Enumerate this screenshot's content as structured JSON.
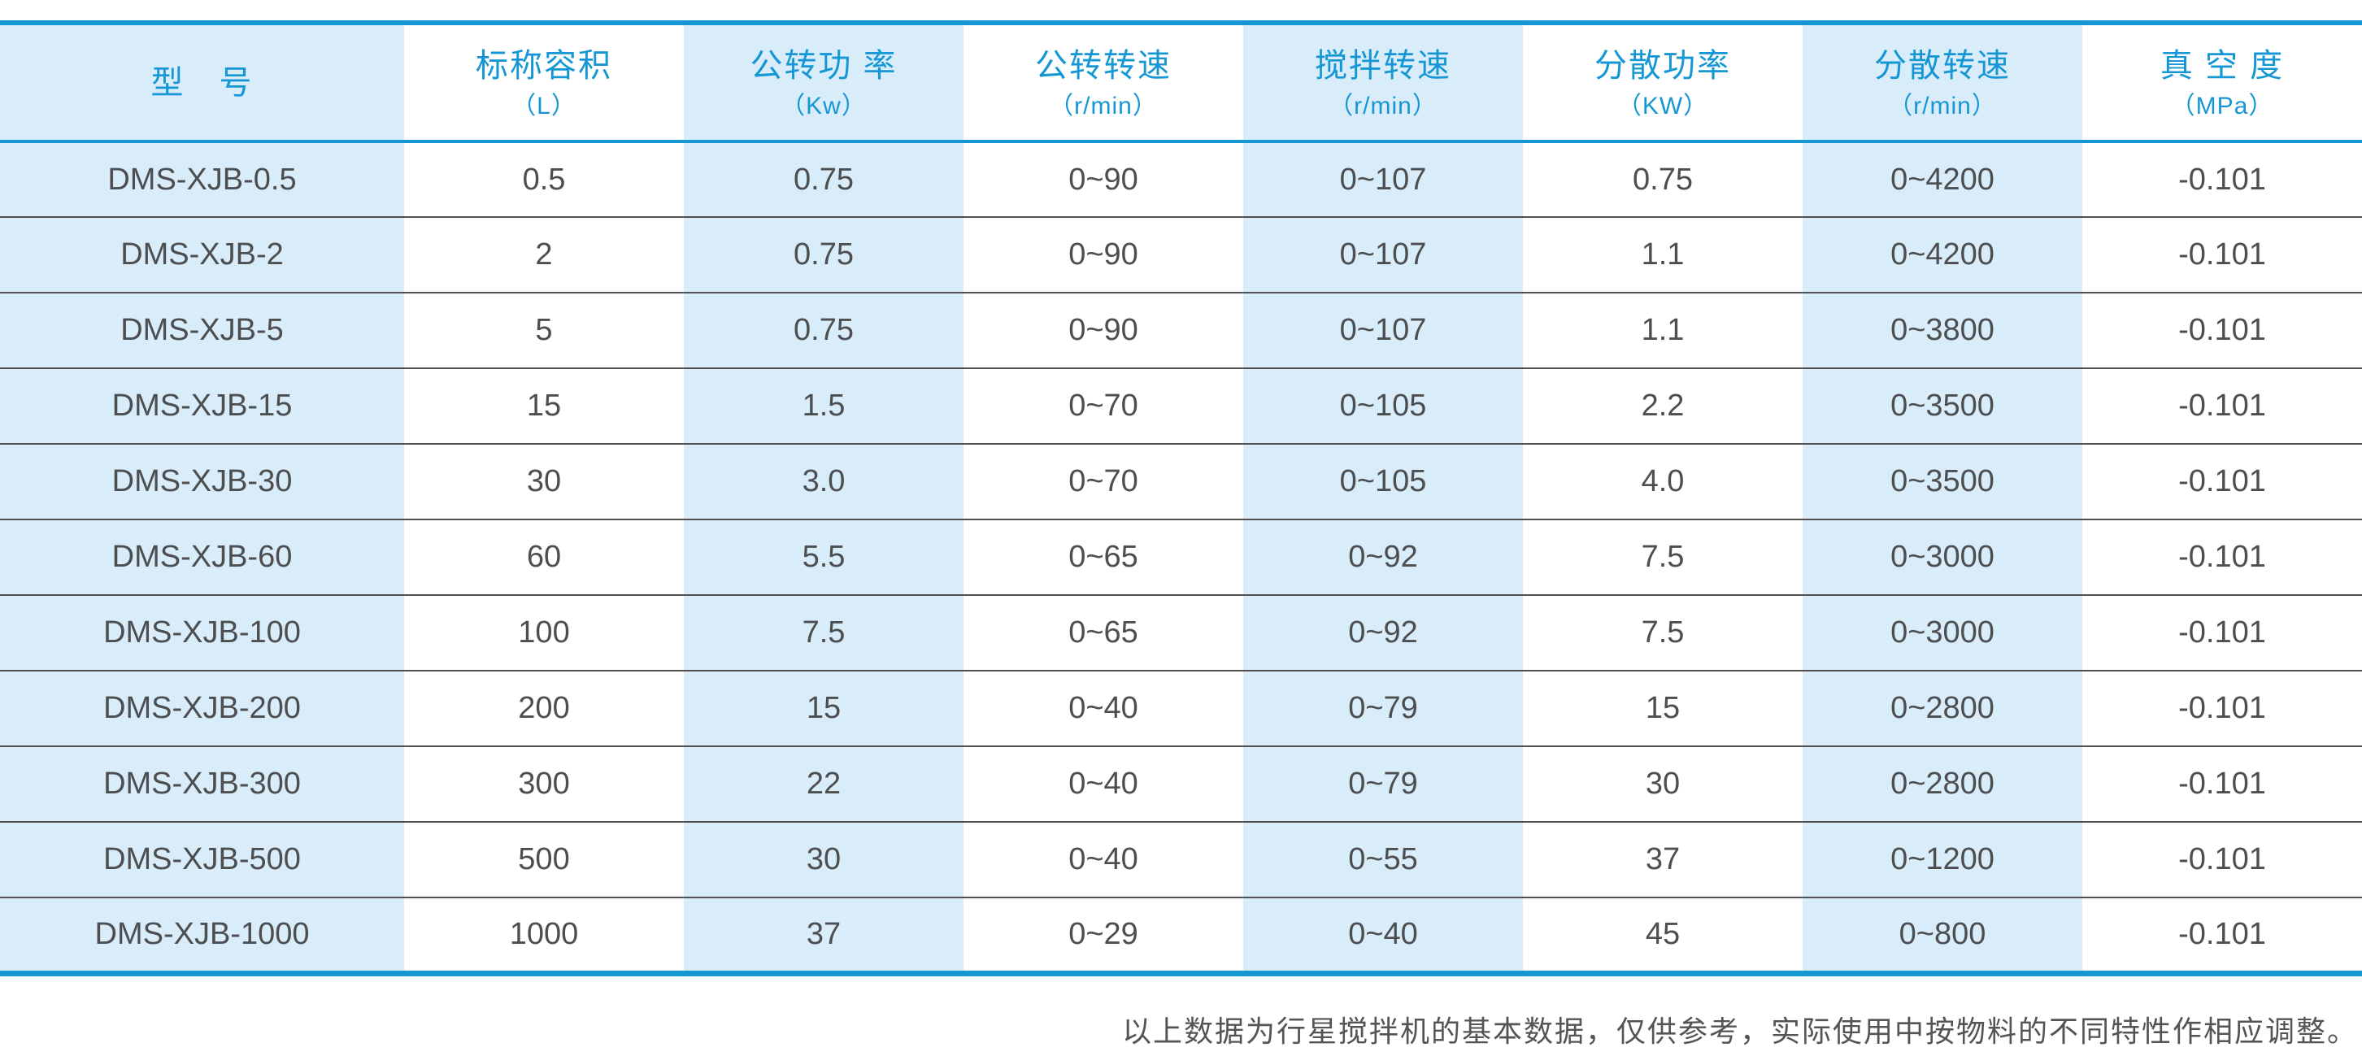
{
  "table": {
    "columns": [
      {
        "title": "型　号",
        "unit": ""
      },
      {
        "title": "标称容积",
        "unit": "（L）"
      },
      {
        "title": "公转功 率",
        "unit": "（Kw）"
      },
      {
        "title": "公转转速",
        "unit": "（r/min）"
      },
      {
        "title": "搅拌转速",
        "unit": "（r/min）"
      },
      {
        "title": "分散功率",
        "unit": "（KW）"
      },
      {
        "title": "分散转速",
        "unit": "（r/min）"
      },
      {
        "title": "真 空 度",
        "unit": "（MPa）"
      }
    ],
    "rows": [
      [
        "DMS-XJB-0.5",
        "0.5",
        "0.75",
        "0~90",
        "0~107",
        "0.75",
        "0~4200",
        "-0.101"
      ],
      [
        "DMS-XJB-2",
        "2",
        "0.75",
        "0~90",
        "0~107",
        "1.1",
        "0~4200",
        "-0.101"
      ],
      [
        "DMS-XJB-5",
        "5",
        "0.75",
        "0~90",
        "0~107",
        "1.1",
        "0~3800",
        "-0.101"
      ],
      [
        "DMS-XJB-15",
        "15",
        "1.5",
        "0~70",
        "0~105",
        "2.2",
        "0~3500",
        "-0.101"
      ],
      [
        "DMS-XJB-30",
        "30",
        "3.0",
        "0~70",
        "0~105",
        "4.0",
        "0~3500",
        "-0.101"
      ],
      [
        "DMS-XJB-60",
        "60",
        "5.5",
        "0~65",
        "0~92",
        "7.5",
        "0~3000",
        "-0.101"
      ],
      [
        "DMS-XJB-100",
        "100",
        "7.5",
        "0~65",
        "0~92",
        "7.5",
        "0~3000",
        "-0.101"
      ],
      [
        "DMS-XJB-200",
        "200",
        "15",
        "0~40",
        "0~79",
        "15",
        "0~2800",
        "-0.101"
      ],
      [
        "DMS-XJB-300",
        "300",
        "22",
        "0~40",
        "0~79",
        "30",
        "0~2800",
        "-0.101"
      ],
      [
        "DMS-XJB-500",
        "500",
        "30",
        "0~40",
        "0~55",
        "37",
        "0~1200",
        "-0.101"
      ],
      [
        "DMS-XJB-1000",
        "1000",
        "37",
        "0~29",
        "0~40",
        "45",
        "0~800",
        "-0.101"
      ]
    ]
  },
  "footer": {
    "note": "以上数据为行星搅拌机的基本数据，仅供参考，实际使用中按物料的不同特性作相应调整。"
  },
  "colors": {
    "accent_blue": "#1697d5",
    "stripe_light_blue": "#d9ecf9",
    "cell_text": "#4c4e50",
    "row_separator": "#4f4f4f",
    "note_text": "#545454"
  }
}
